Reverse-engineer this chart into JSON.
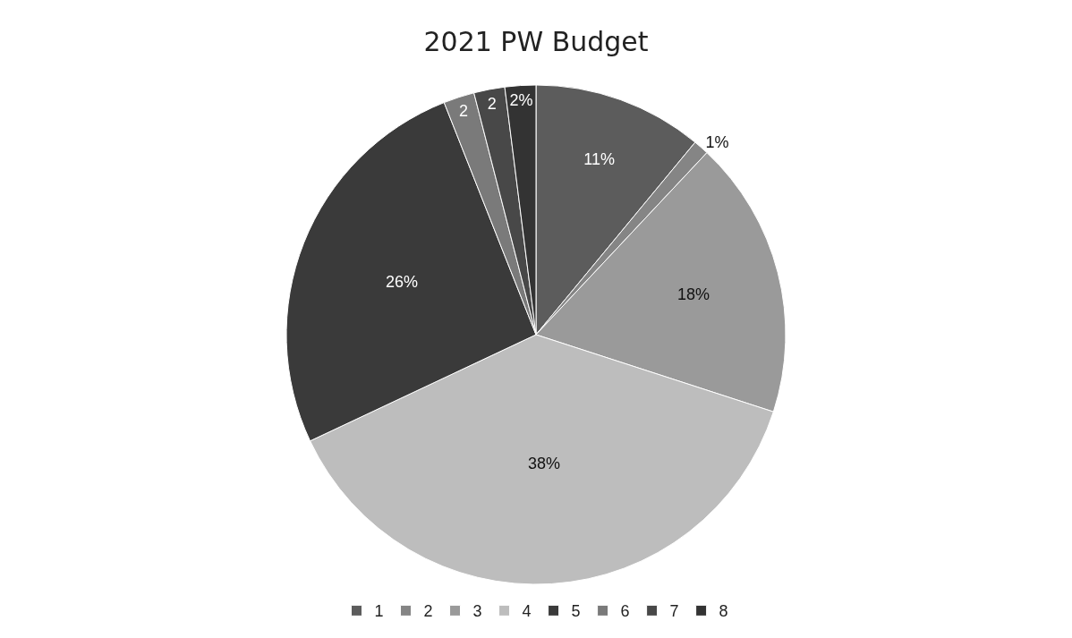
{
  "chart_data": {
    "type": "pie",
    "title": "2021 PW Budget",
    "categories": [
      "1",
      "2",
      "3",
      "4",
      "5",
      "6",
      "7",
      "8"
    ],
    "values": [
      11,
      1,
      18,
      38,
      26,
      2,
      2,
      2
    ],
    "value_labels": [
      "11%",
      "1%",
      "18%",
      "38%",
      "26%",
      "2",
      "2",
      "2%"
    ],
    "colors": [
      "#5c5c5c",
      "#858585",
      "#9a9a9a",
      "#bdbdbd",
      "#3a3a3a",
      "#7a7a7a",
      "#484848",
      "#333333"
    ],
    "legend": "bottom"
  }
}
